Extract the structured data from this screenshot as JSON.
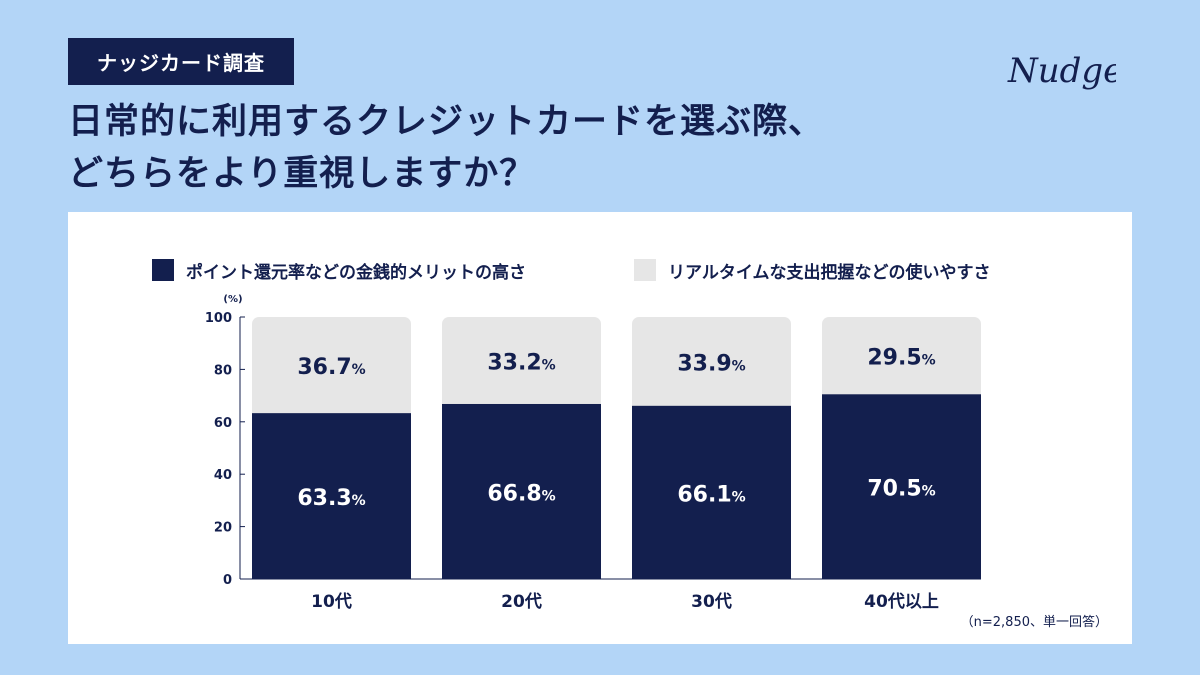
{
  "header": {
    "badge": "ナッジカード調査",
    "title_line1": "日常的に利用するクレジットカードを選ぶ際、",
    "title_line2": "どちらをより重視しますか？",
    "logo_text": "Nudge"
  },
  "colors": {
    "background": "#b3d5f7",
    "navy": "#131f4e",
    "light_gray": "#e6e6e6",
    "card": "#ffffff"
  },
  "chart_data": {
    "type": "bar",
    "stacked": true,
    "title": "",
    "ylabel": "(%)",
    "ylim": [
      0,
      100
    ],
    "yticks": [
      0,
      20,
      40,
      60,
      80,
      100
    ],
    "categories": [
      "10代",
      "20代",
      "30代",
      "40代以上"
    ],
    "series": [
      {
        "name": "ポイント還元率などの金銭的メリットの高さ",
        "values": [
          63.3,
          66.8,
          66.1,
          70.5
        ],
        "color": "#131f4e"
      },
      {
        "name": "リアルタイムな支出把握などの使いやすさ",
        "values": [
          36.7,
          33.2,
          33.9,
          29.5
        ],
        "color": "#e6e6e6"
      }
    ],
    "value_suffix": "%",
    "note": "（n=2,850、単一回答）"
  }
}
